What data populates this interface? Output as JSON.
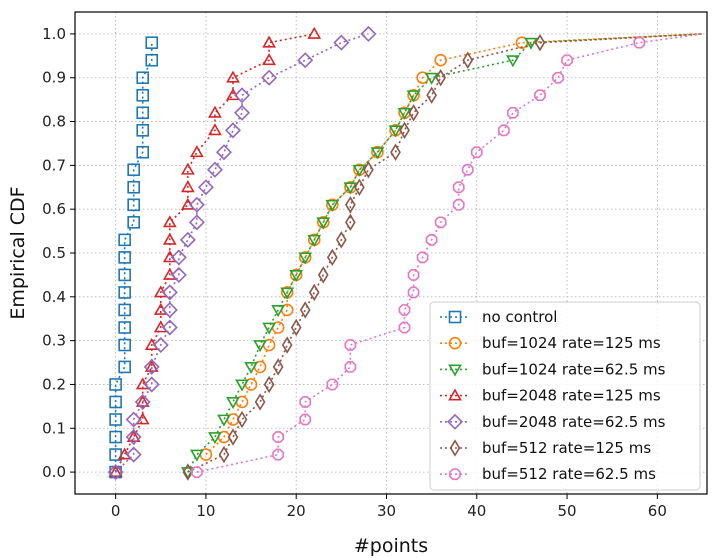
{
  "chart_data": {
    "type": "line",
    "title": "",
    "xlabel": "#points",
    "ylabel": "Empirical CDF",
    "xlim": [
      -4.5,
      65.5
    ],
    "ylim": [
      -0.05,
      1.05
    ],
    "xticks": [
      0,
      10,
      20,
      30,
      40,
      50,
      60
    ],
    "yticks": [
      0.0,
      0.1,
      0.2,
      0.3,
      0.4,
      0.5,
      0.6,
      0.7,
      0.8,
      0.9,
      1.0
    ],
    "xtick_labels": [
      "0",
      "10",
      "20",
      "30",
      "40",
      "50",
      "60"
    ],
    "ytick_labels": [
      "0.0",
      "0.1",
      "0.2",
      "0.3",
      "0.4",
      "0.5",
      "0.6",
      "0.7",
      "0.8",
      "0.9",
      "1.0"
    ],
    "grid": true,
    "legend_position": "bottom-right",
    "series": [
      {
        "name": "no control",
        "marker": "square",
        "color": "#1f77b4",
        "points": [
          [
            0,
            0.0
          ],
          [
            0,
            0.04
          ],
          [
            0,
            0.08
          ],
          [
            0,
            0.12
          ],
          [
            0,
            0.16
          ],
          [
            0,
            0.2
          ],
          [
            1,
            0.24
          ],
          [
            1,
            0.29
          ],
          [
            1,
            0.33
          ],
          [
            1,
            0.37
          ],
          [
            1,
            0.41
          ],
          [
            1,
            0.45
          ],
          [
            1,
            0.49
          ],
          [
            1,
            0.53
          ],
          [
            2,
            0.57
          ],
          [
            2,
            0.61
          ],
          [
            2,
            0.65
          ],
          [
            2,
            0.69
          ],
          [
            3,
            0.73
          ],
          [
            3,
            0.78
          ],
          [
            3,
            0.82
          ],
          [
            3,
            0.86
          ],
          [
            3,
            0.9
          ],
          [
            4,
            0.94
          ],
          [
            4,
            0.98
          ]
        ]
      },
      {
        "name": "buf=1024 rate=125 ms",
        "marker": "circle",
        "color": "#ff7f0e",
        "points": [
          [
            10,
            0.04
          ],
          [
            12,
            0.08
          ],
          [
            13,
            0.12
          ],
          [
            14,
            0.16
          ],
          [
            15,
            0.2
          ],
          [
            16,
            0.24
          ],
          [
            17,
            0.29
          ],
          [
            18,
            0.33
          ],
          [
            19,
            0.37
          ],
          [
            19,
            0.41
          ],
          [
            20,
            0.45
          ],
          [
            21,
            0.49
          ],
          [
            22,
            0.53
          ],
          [
            23,
            0.57
          ],
          [
            24,
            0.61
          ],
          [
            26,
            0.65
          ],
          [
            27,
            0.69
          ],
          [
            29,
            0.73
          ],
          [
            31,
            0.78
          ],
          [
            32,
            0.82
          ],
          [
            33,
            0.86
          ],
          [
            34,
            0.9
          ],
          [
            36,
            0.94
          ],
          [
            45,
            0.98
          ],
          [
            65,
            1.0
          ]
        ]
      },
      {
        "name": "buf=1024 rate=62.5 ms",
        "marker": "triangle-down",
        "color": "#2ca02c",
        "points": [
          [
            8,
            0.0
          ],
          [
            9,
            0.04
          ],
          [
            11,
            0.08
          ],
          [
            12,
            0.12
          ],
          [
            13,
            0.16
          ],
          [
            14,
            0.2
          ],
          [
            15,
            0.24
          ],
          [
            16,
            0.29
          ],
          [
            17,
            0.33
          ],
          [
            18,
            0.37
          ],
          [
            19,
            0.41
          ],
          [
            20,
            0.45
          ],
          [
            21,
            0.49
          ],
          [
            22,
            0.53
          ],
          [
            23,
            0.57
          ],
          [
            24,
            0.61
          ],
          [
            26,
            0.65
          ],
          [
            27,
            0.69
          ],
          [
            29,
            0.73
          ],
          [
            31,
            0.78
          ],
          [
            32,
            0.82
          ],
          [
            33,
            0.86
          ],
          [
            35,
            0.9
          ],
          [
            44,
            0.94
          ],
          [
            46,
            0.98
          ],
          [
            65,
            1.0
          ]
        ]
      },
      {
        "name": "buf=2048 rate=125 ms",
        "marker": "triangle-up",
        "color": "#d62728",
        "points": [
          [
            0,
            0.0
          ],
          [
            1,
            0.04
          ],
          [
            2,
            0.08
          ],
          [
            3,
            0.12
          ],
          [
            3,
            0.16
          ],
          [
            3,
            0.2
          ],
          [
            4,
            0.24
          ],
          [
            4,
            0.29
          ],
          [
            5,
            0.33
          ],
          [
            5,
            0.37
          ],
          [
            5,
            0.41
          ],
          [
            6,
            0.45
          ],
          [
            6,
            0.49
          ],
          [
            6,
            0.53
          ],
          [
            6,
            0.57
          ],
          [
            8,
            0.61
          ],
          [
            8,
            0.65
          ],
          [
            8,
            0.69
          ],
          [
            9,
            0.73
          ],
          [
            11,
            0.78
          ],
          [
            11,
            0.82
          ],
          [
            13,
            0.86
          ],
          [
            13,
            0.9
          ],
          [
            17,
            0.94
          ],
          [
            17,
            0.98
          ],
          [
            22,
            1.0
          ]
        ]
      },
      {
        "name": "buf=2048 rate=62.5 ms",
        "marker": "diamond",
        "color": "#9467bd",
        "points": [
          [
            0,
            0.0
          ],
          [
            2,
            0.04
          ],
          [
            2,
            0.08
          ],
          [
            2,
            0.12
          ],
          [
            3,
            0.16
          ],
          [
            4,
            0.2
          ],
          [
            4,
            0.24
          ],
          [
            5,
            0.29
          ],
          [
            6,
            0.33
          ],
          [
            6,
            0.37
          ],
          [
            6,
            0.41
          ],
          [
            7,
            0.45
          ],
          [
            7,
            0.49
          ],
          [
            8,
            0.53
          ],
          [
            9,
            0.57
          ],
          [
            9,
            0.61
          ],
          [
            10,
            0.65
          ],
          [
            11,
            0.69
          ],
          [
            12,
            0.73
          ],
          [
            13,
            0.78
          ],
          [
            14,
            0.82
          ],
          [
            14,
            0.86
          ],
          [
            17,
            0.9
          ],
          [
            21,
            0.94
          ],
          [
            25,
            0.98
          ],
          [
            28,
            1.0
          ]
        ]
      },
      {
        "name": "buf=512 rate=125 ms",
        "marker": "thin-diamond",
        "color": "#8c564b",
        "points": [
          [
            8,
            0.0
          ],
          [
            12,
            0.04
          ],
          [
            13,
            0.08
          ],
          [
            14,
            0.12
          ],
          [
            16,
            0.16
          ],
          [
            17,
            0.2
          ],
          [
            18,
            0.24
          ],
          [
            19,
            0.29
          ],
          [
            20,
            0.33
          ],
          [
            21,
            0.37
          ],
          [
            22,
            0.41
          ],
          [
            23,
            0.45
          ],
          [
            24,
            0.49
          ],
          [
            25,
            0.53
          ],
          [
            26,
            0.57
          ],
          [
            26,
            0.61
          ],
          [
            27,
            0.65
          ],
          [
            28,
            0.69
          ],
          [
            31,
            0.73
          ],
          [
            32,
            0.78
          ],
          [
            33,
            0.82
          ],
          [
            35,
            0.86
          ],
          [
            36,
            0.9
          ],
          [
            39,
            0.94
          ],
          [
            47,
            0.98
          ],
          [
            65,
            1.0
          ]
        ]
      },
      {
        "name": "buf=512 rate=62.5 ms",
        "marker": "octagon",
        "color": "#e377c2",
        "points": [
          [
            9,
            0.0
          ],
          [
            18,
            0.04
          ],
          [
            18,
            0.08
          ],
          [
            21,
            0.12
          ],
          [
            21,
            0.16
          ],
          [
            24,
            0.2
          ],
          [
            26,
            0.24
          ],
          [
            26,
            0.29
          ],
          [
            32,
            0.33
          ],
          [
            32,
            0.37
          ],
          [
            33,
            0.41
          ],
          [
            33,
            0.45
          ],
          [
            34,
            0.49
          ],
          [
            35,
            0.53
          ],
          [
            36,
            0.57
          ],
          [
            38,
            0.61
          ],
          [
            38,
            0.65
          ],
          [
            39,
            0.69
          ],
          [
            40,
            0.73
          ],
          [
            43,
            0.78
          ],
          [
            44,
            0.82
          ],
          [
            47,
            0.86
          ],
          [
            49,
            0.9
          ],
          [
            50,
            0.94
          ],
          [
            58,
            0.98
          ],
          [
            65,
            1.0
          ]
        ]
      }
    ]
  }
}
